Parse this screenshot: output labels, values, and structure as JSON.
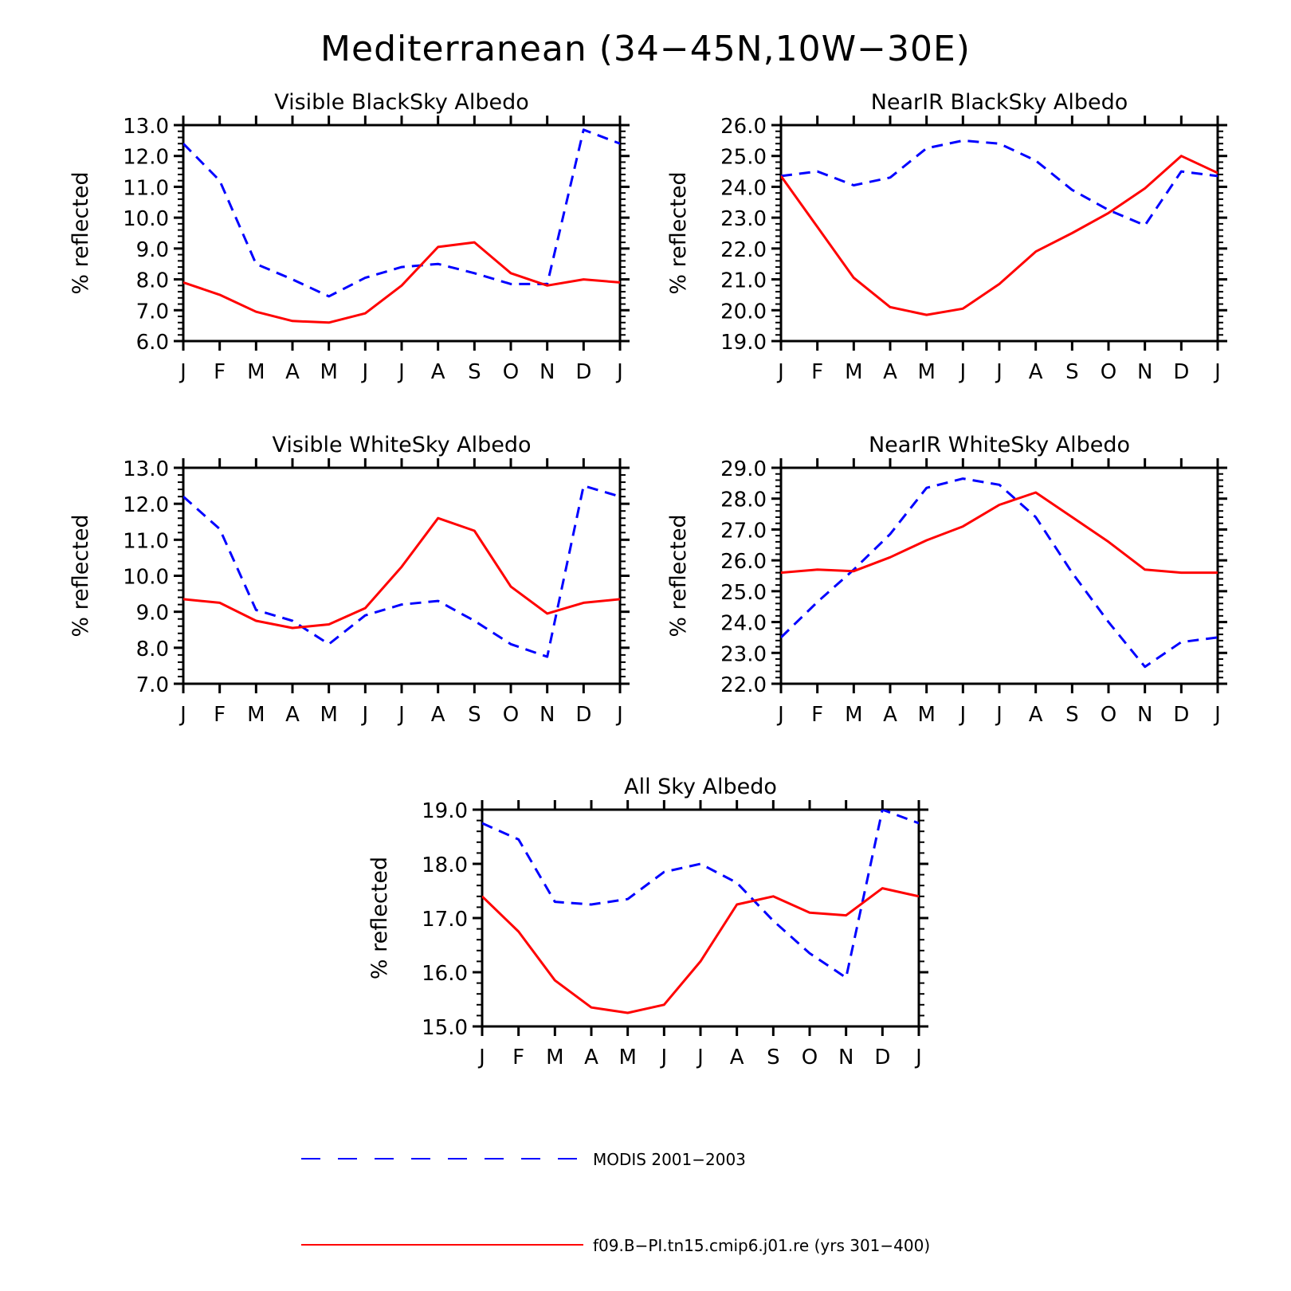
{
  "title": "Mediterranean (34−45N,10W−30E)",
  "colors": {
    "modis": "#0000ff",
    "model": "#ff0000",
    "axes": "#000000"
  },
  "legend": [
    {
      "label": "MODIS 2001−2003",
      "style": "dashed",
      "color": "#0000ff"
    },
    {
      "label": "f09.B−PI.tn15.cmip6.j01.re (yrs 301−400)",
      "style": "solid",
      "color": "#ff0000"
    }
  ],
  "chart_data": [
    {
      "type": "line",
      "title": "Visible BlackSky Albedo",
      "ylabel": "% reflected",
      "categories": [
        "J",
        "F",
        "M",
        "A",
        "M",
        "J",
        "J",
        "A",
        "S",
        "O",
        "N",
        "D",
        "J"
      ],
      "ylim": [
        6.0,
        13.0
      ],
      "yticks": [
        "6.0",
        "7.0",
        "8.0",
        "9.0",
        "10.0",
        "11.0",
        "12.0",
        "13.0"
      ],
      "series": [
        {
          "name": "MODIS 2001−2003",
          "style": "dashed",
          "values": [
            12.4,
            11.2,
            8.5,
            8.0,
            7.45,
            8.05,
            8.4,
            8.5,
            8.2,
            7.85,
            7.85,
            12.85,
            12.4
          ]
        },
        {
          "name": "f09.B−PI.tn15.cmip6.j01.re (yrs 301−400)",
          "style": "solid",
          "values": [
            7.9,
            7.5,
            6.95,
            6.65,
            6.6,
            6.9,
            7.8,
            9.05,
            9.2,
            8.2,
            7.8,
            8.0,
            7.9
          ]
        }
      ]
    },
    {
      "type": "line",
      "title": "NearIR BlackSky Albedo",
      "ylabel": "% reflected",
      "categories": [
        "J",
        "F",
        "M",
        "A",
        "M",
        "J",
        "J",
        "A",
        "S",
        "O",
        "N",
        "D",
        "J"
      ],
      "ylim": [
        19.0,
        26.0
      ],
      "yticks": [
        "19.0",
        "20.0",
        "21.0",
        "22.0",
        "23.0",
        "24.0",
        "25.0",
        "26.0"
      ],
      "series": [
        {
          "name": "MODIS 2001−2003",
          "style": "dashed",
          "values": [
            24.35,
            24.5,
            24.05,
            24.3,
            25.25,
            25.5,
            25.4,
            24.85,
            23.9,
            23.25,
            22.75,
            24.5,
            24.35
          ]
        },
        {
          "name": "f09.B−PI.tn15.cmip6.j01.re (yrs 301−400)",
          "style": "solid",
          "values": [
            24.35,
            22.7,
            21.05,
            20.1,
            19.85,
            20.05,
            20.85,
            21.9,
            22.5,
            23.15,
            23.95,
            25.0,
            24.45
          ]
        }
      ]
    },
    {
      "type": "line",
      "title": "Visible WhiteSky Albedo",
      "ylabel": "% reflected",
      "categories": [
        "J",
        "F",
        "M",
        "A",
        "M",
        "J",
        "J",
        "A",
        "S",
        "O",
        "N",
        "D",
        "J"
      ],
      "ylim": [
        7.0,
        13.0
      ],
      "yticks": [
        "7.0",
        "8.0",
        "9.0",
        "10.0",
        "11.0",
        "12.0",
        "13.0"
      ],
      "series": [
        {
          "name": "MODIS 2001−2003",
          "style": "dashed",
          "values": [
            12.2,
            11.3,
            9.05,
            8.75,
            8.1,
            8.9,
            9.2,
            9.3,
            8.75,
            8.1,
            7.75,
            12.5,
            12.2
          ]
        },
        {
          "name": "f09.B−PI.tn15.cmip6.j01.re (yrs 301−400)",
          "style": "solid",
          "values": [
            9.35,
            9.25,
            8.75,
            8.55,
            8.65,
            9.1,
            10.25,
            11.6,
            11.25,
            9.7,
            8.95,
            9.25,
            9.35
          ]
        }
      ]
    },
    {
      "type": "line",
      "title": "NearIR WhiteSky Albedo",
      "ylabel": "% reflected",
      "categories": [
        "J",
        "F",
        "M",
        "A",
        "M",
        "J",
        "J",
        "A",
        "S",
        "O",
        "N",
        "D",
        "J"
      ],
      "ylim": [
        22.0,
        29.0
      ],
      "yticks": [
        "22.0",
        "23.0",
        "24.0",
        "25.0",
        "26.0",
        "27.0",
        "28.0",
        "29.0"
      ],
      "series": [
        {
          "name": "MODIS 2001−2003",
          "style": "dashed",
          "values": [
            23.5,
            24.65,
            25.7,
            26.85,
            28.35,
            28.65,
            28.45,
            27.4,
            25.6,
            24.0,
            22.55,
            23.35,
            23.5
          ]
        },
        {
          "name": "f09.B−PI.tn15.cmip6.j01.re (yrs 301−400)",
          "style": "solid",
          "values": [
            25.6,
            25.7,
            25.65,
            26.1,
            26.65,
            27.1,
            27.8,
            28.2,
            27.4,
            26.6,
            25.7,
            25.6,
            25.6
          ]
        }
      ]
    },
    {
      "type": "line",
      "title": "All Sky Albedo",
      "ylabel": "% reflected",
      "categories": [
        "J",
        "F",
        "M",
        "A",
        "M",
        "J",
        "J",
        "A",
        "S",
        "O",
        "N",
        "D",
        "J"
      ],
      "ylim": [
        15.0,
        19.0
      ],
      "yticks": [
        "15.0",
        "16.0",
        "17.0",
        "18.0",
        "19.0"
      ],
      "series": [
        {
          "name": "MODIS 2001−2003",
          "style": "dashed",
          "values": [
            18.75,
            18.45,
            17.3,
            17.25,
            17.35,
            17.85,
            18.0,
            17.65,
            16.95,
            16.35,
            15.9,
            19.0,
            18.75
          ]
        },
        {
          "name": "f09.B−PI.tn15.cmip6.j01.re (yrs 301−400)",
          "style": "solid",
          "values": [
            17.4,
            16.75,
            15.85,
            15.35,
            15.25,
            15.4,
            16.2,
            17.25,
            17.4,
            17.1,
            17.05,
            17.55,
            17.4
          ]
        }
      ]
    }
  ]
}
